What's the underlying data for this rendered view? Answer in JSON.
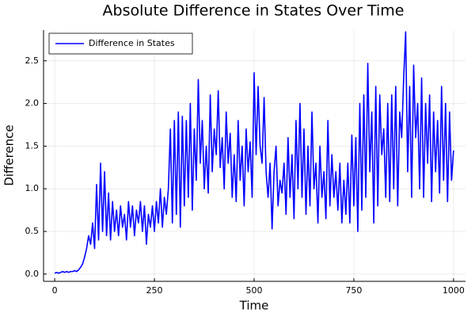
{
  "chart_data": {
    "type": "line",
    "title": "Absolute Difference in States Over Time",
    "x_label": "Time",
    "y_label": "Difference",
    "x": [
      0,
      5,
      10,
      15,
      20,
      25,
      30,
      35,
      40,
      45,
      50,
      55,
      60,
      65,
      70,
      75,
      80,
      85,
      90,
      95,
      100,
      105,
      110,
      115,
      120,
      125,
      130,
      135,
      140,
      145,
      150,
      155,
      160,
      165,
      170,
      175,
      180,
      185,
      190,
      195,
      200,
      205,
      210,
      215,
      220,
      225,
      230,
      235,
      240,
      245,
      250,
      255,
      260,
      265,
      270,
      275,
      280,
      285,
      290,
      295,
      300,
      305,
      310,
      315,
      320,
      325,
      330,
      335,
      340,
      345,
      350,
      355,
      360,
      365,
      370,
      375,
      380,
      385,
      390,
      395,
      400,
      405,
      410,
      415,
      420,
      425,
      430,
      435,
      440,
      445,
      450,
      455,
      460,
      465,
      470,
      475,
      480,
      485,
      490,
      495,
      500,
      505,
      510,
      515,
      520,
      525,
      530,
      535,
      540,
      545,
      550,
      555,
      560,
      565,
      570,
      575,
      580,
      585,
      590,
      595,
      600,
      605,
      610,
      615,
      620,
      625,
      630,
      635,
      640,
      645,
      650,
      655,
      660,
      665,
      670,
      675,
      680,
      685,
      690,
      695,
      700,
      705,
      710,
      715,
      720,
      725,
      730,
      735,
      740,
      745,
      750,
      755,
      760,
      765,
      770,
      775,
      780,
      785,
      790,
      795,
      800,
      805,
      810,
      815,
      820,
      825,
      830,
      835,
      840,
      845,
      850,
      855,
      860,
      865,
      870,
      875,
      880,
      885,
      890,
      895,
      900,
      905,
      910,
      915,
      920,
      925,
      930,
      935,
      940,
      945,
      950,
      955,
      960,
      965,
      970,
      975,
      980,
      985,
      990,
      995,
      1000
    ],
    "series": [
      {
        "name": "Difference in States",
        "color": "#0000ff",
        "values": [
          0.01,
          0.02,
          0.01,
          0.02,
          0.03,
          0.02,
          0.03,
          0.02,
          0.03,
          0.03,
          0.04,
          0.03,
          0.05,
          0.08,
          0.12,
          0.2,
          0.3,
          0.45,
          0.35,
          0.6,
          0.3,
          1.05,
          0.4,
          1.3,
          0.5,
          1.2,
          0.45,
          0.95,
          0.4,
          0.85,
          0.5,
          0.75,
          0.45,
          0.8,
          0.55,
          0.7,
          0.4,
          0.85,
          0.55,
          0.8,
          0.45,
          0.75,
          0.6,
          0.85,
          0.5,
          0.8,
          0.35,
          0.7,
          0.55,
          0.8,
          0.5,
          0.85,
          0.6,
          1.0,
          0.55,
          0.9,
          0.7,
          1.0,
          1.7,
          0.6,
          1.8,
          0.7,
          1.9,
          0.55,
          1.85,
          0.8,
          1.8,
          0.9,
          2.0,
          0.75,
          1.7,
          1.1,
          2.28,
          1.3,
          1.8,
          1.0,
          1.5,
          0.95,
          2.1,
          1.2,
          1.7,
          1.4,
          2.15,
          1.25,
          1.6,
          1.0,
          1.9,
          1.3,
          1.65,
          0.9,
          1.4,
          0.85,
          1.8,
          1.1,
          1.5,
          0.8,
          1.7,
          1.2,
          1.55,
          0.9,
          2.36,
          1.4,
          2.2,
          1.5,
          1.3,
          2.07,
          1.2,
          0.9,
          1.3,
          0.53,
          1.2,
          1.5,
          0.8,
          1.1,
          0.95,
          1.3,
          0.7,
          1.6,
          0.9,
          1.4,
          0.65,
          1.8,
          1.0,
          2.0,
          0.9,
          1.7,
          0.7,
          1.5,
          0.8,
          1.9,
          1.0,
          1.3,
          0.6,
          1.5,
          0.9,
          1.2,
          0.65,
          1.8,
          0.8,
          1.4,
          0.9,
          1.2,
          0.75,
          1.3,
          0.6,
          1.1,
          0.7,
          1.3,
          0.6,
          1.63,
          0.8,
          1.6,
          0.5,
          2.0,
          0.75,
          2.1,
          0.9,
          2.47,
          1.2,
          1.9,
          0.6,
          2.2,
          0.8,
          2.1,
          1.4,
          1.7,
          0.9,
          2.0,
          0.85,
          2.1,
          1.0,
          2.2,
          0.8,
          1.9,
          1.6,
          2.3,
          2.84,
          1.2,
          2.2,
          0.9,
          2.45,
          1.6,
          2.0,
          1.0,
          2.3,
          0.9,
          2.0,
          1.3,
          2.1,
          0.85,
          1.9,
          1.2,
          1.8,
          0.95,
          2.2,
          1.1,
          2.0,
          0.85,
          1.9,
          1.1,
          1.45
        ]
      }
    ],
    "xlim": [
      -28,
      1030
    ],
    "ylim": [
      -0.085,
      2.86
    ],
    "xticks": [
      0,
      250,
      500,
      750,
      1000
    ],
    "yticks": [
      {
        "value": 0,
        "label": "0.0"
      },
      0.5,
      {
        "value": 1,
        "label": "1.0"
      },
      1.5,
      {
        "value": 2,
        "label": "2.0"
      },
      2.5
    ],
    "grid": true,
    "legend": "top-left"
  }
}
